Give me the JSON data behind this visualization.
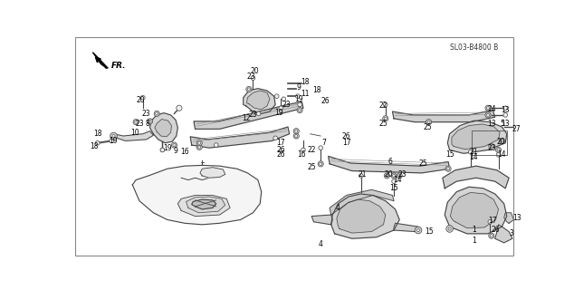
{
  "background_color": "#ffffff",
  "diagram_code": "SL03-B4800 B",
  "fig_width": 6.34,
  "fig_height": 3.2,
  "dpi": 100,
  "line_color": "#333333",
  "text_color": "#000000",
  "part_fill": "#e8e8e8",
  "part_line": "#444444"
}
